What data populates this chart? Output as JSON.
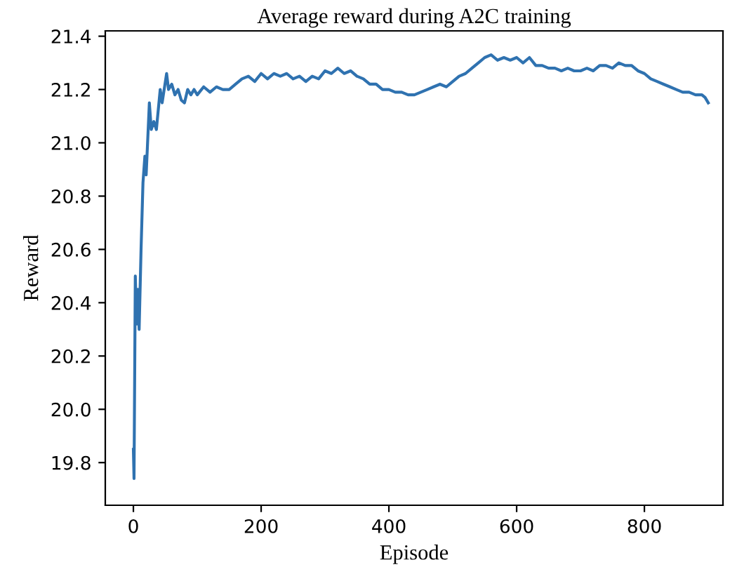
{
  "chart_data": {
    "type": "line",
    "title": "Average reward during A2C training",
    "xlabel": "Episode",
    "ylabel": "Reward",
    "xlim": [
      -44,
      923
    ],
    "ylim": [
      19.64,
      21.42
    ],
    "xticks": [
      0,
      200,
      400,
      600,
      800
    ],
    "yticks": [
      19.8,
      {
        "value": 20,
        "label": "20.0"
      },
      20.2,
      20.4,
      20.6,
      20.8,
      {
        "value": 21,
        "label": "21.0"
      },
      21.2,
      21.4
    ],
    "grid": false,
    "legend": false,
    "series": [
      {
        "color": "#2f72b0",
        "x": [
          0,
          1,
          3,
          5,
          7,
          9,
          12,
          15,
          18,
          20,
          25,
          28,
          32,
          36,
          42,
          45,
          52,
          55,
          60,
          65,
          70,
          75,
          80,
          85,
          90,
          95,
          100,
          110,
          120,
          130,
          140,
          150,
          160,
          170,
          180,
          190,
          200,
          210,
          220,
          230,
          240,
          250,
          260,
          270,
          280,
          290,
          300,
          310,
          320,
          330,
          340,
          350,
          360,
          370,
          380,
          390,
          400,
          410,
          420,
          430,
          440,
          450,
          460,
          470,
          480,
          490,
          500,
          510,
          520,
          530,
          540,
          550,
          560,
          570,
          580,
          590,
          600,
          610,
          620,
          630,
          640,
          650,
          660,
          670,
          680,
          690,
          700,
          710,
          720,
          730,
          740,
          750,
          760,
          770,
          780,
          790,
          800,
          810,
          820,
          830,
          840,
          850,
          860,
          870,
          880,
          890,
          895,
          900
        ],
        "values": [
          19.85,
          19.74,
          20.5,
          20.32,
          20.45,
          20.3,
          20.6,
          20.85,
          20.95,
          20.88,
          21.15,
          21.05,
          21.08,
          21.05,
          21.2,
          21.15,
          21.26,
          21.2,
          21.22,
          21.18,
          21.2,
          21.16,
          21.15,
          21.2,
          21.18,
          21.2,
          21.18,
          21.21,
          21.19,
          21.21,
          21.2,
          21.2,
          21.22,
          21.24,
          21.25,
          21.23,
          21.26,
          21.24,
          21.26,
          21.25,
          21.26,
          21.24,
          21.25,
          21.23,
          21.25,
          21.24,
          21.27,
          21.26,
          21.28,
          21.26,
          21.27,
          21.25,
          21.24,
          21.22,
          21.22,
          21.2,
          21.2,
          21.19,
          21.19,
          21.18,
          21.18,
          21.19,
          21.2,
          21.21,
          21.22,
          21.21,
          21.23,
          21.25,
          21.26,
          21.28,
          21.3,
          21.32,
          21.33,
          21.31,
          21.32,
          21.31,
          21.32,
          21.3,
          21.32,
          21.29,
          21.29,
          21.28,
          21.28,
          21.27,
          21.28,
          21.27,
          21.27,
          21.28,
          21.27,
          21.29,
          21.29,
          21.28,
          21.3,
          21.29,
          21.29,
          21.27,
          21.26,
          21.24,
          21.23,
          21.22,
          21.21,
          21.2,
          21.19,
          21.19,
          21.18,
          21.18,
          21.17,
          21.15
        ]
      }
    ]
  }
}
